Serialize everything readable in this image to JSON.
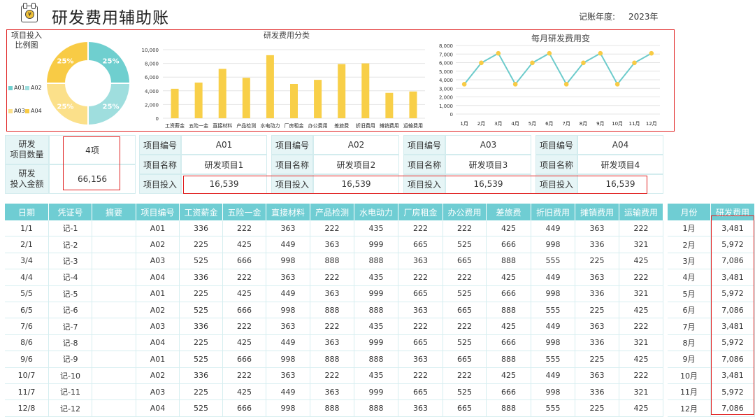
{
  "header": {
    "title": "研发费用辅助账",
    "year_label": "记账年度:",
    "year_value": "2023年",
    "logo_glyph": "¥"
  },
  "donut": {
    "title_line1": "项目投入",
    "title_line2": "比例图",
    "slices": [
      {
        "code": "A01",
        "percent": 25,
        "label": "25%",
        "color": "#6fcfcf"
      },
      {
        "code": "A02",
        "percent": 25,
        "label": "25%",
        "color": "#9fdede"
      },
      {
        "code": "A03",
        "percent": 25,
        "label": "25%",
        "color": "#fbe08a"
      },
      {
        "code": "A04",
        "percent": 25,
        "label": "25%",
        "color": "#f8cb45"
      }
    ]
  },
  "chart_data": [
    {
      "type": "bar",
      "title": "研发费用分类",
      "categories": [
        "工资薪金",
        "五险一金",
        "直接材料",
        "产品检测",
        "水电动力",
        "厂房租金",
        "办公费用",
        "差旅费",
        "折旧费用",
        "摊销费用",
        "运输费用"
      ],
      "values": [
        4300,
        5200,
        7200,
        5900,
        9200,
        5000,
        5600,
        7900,
        8000,
        3700,
        3900
      ],
      "ylim": [
        0,
        10000
      ],
      "yticks": [
        "0",
        "2,000",
        "4,000",
        "6,000",
        "8,000",
        "10,000"
      ],
      "color": "#f8cf48",
      "grid": true
    },
    {
      "type": "line",
      "title": "每月研发费用变",
      "categories": [
        "1月",
        "2月",
        "3月",
        "4月",
        "5月",
        "6月",
        "7月",
        "8月",
        "9月",
        "10月",
        "11月",
        "12月"
      ],
      "values": [
        3481,
        5972,
        7086,
        3481,
        5972,
        7086,
        3481,
        5972,
        7086,
        3481,
        5972,
        7086
      ],
      "ylim": [
        0,
        8000
      ],
      "yticks": [
        "0",
        "1,000",
        "2,000",
        "3,000",
        "4,000",
        "5,000",
        "6,000",
        "7,000",
        "8,000"
      ],
      "line_color": "#6ccbcb",
      "marker_color": "#f8cb45",
      "grid": true
    }
  ],
  "summary": {
    "count_label": "研发\n项目数量",
    "count_value": "4项",
    "amount_label": "研发\n投入金额",
    "amount_value": "66,156"
  },
  "projects": [
    {
      "no_label": "项目编号",
      "no": "A01",
      "name_label": "项目名称",
      "name": "研发项目1",
      "inv_label": "项目投入",
      "inv": "16,539"
    },
    {
      "no_label": "项目编号",
      "no": "A02",
      "name_label": "项目名称",
      "name": "研发项目2",
      "inv_label": "项目投入",
      "inv": "16,539"
    },
    {
      "no_label": "项目编号",
      "no": "A03",
      "name_label": "项目名称",
      "name": "研发项目3",
      "inv_label": "项目投入",
      "inv": "16,539"
    },
    {
      "no_label": "项目编号",
      "no": "A04",
      "name_label": "项目名称",
      "name": "研发项目4",
      "inv_label": "项目投入",
      "inv": "16,539"
    }
  ],
  "table": {
    "columns": [
      "日期",
      "凭证号",
      "摘要",
      "项目编号",
      "工资薪金",
      "五险一金",
      "直接材料",
      "产品检测",
      "水电动力",
      "厂房租金",
      "办公费用",
      "差旅费",
      "折旧费用",
      "摊销费用",
      "运输费用"
    ],
    "rows": [
      [
        "1/1",
        "记-1",
        "",
        "A01",
        "336",
        "222",
        "363",
        "222",
        "435",
        "222",
        "222",
        "425",
        "449",
        "363",
        "222"
      ],
      [
        "2/1",
        "记-2",
        "",
        "A02",
        "225",
        "425",
        "449",
        "363",
        "999",
        "665",
        "525",
        "666",
        "998",
        "336",
        "321"
      ],
      [
        "3/4",
        "记-3",
        "",
        "A03",
        "525",
        "666",
        "998",
        "888",
        "888",
        "363",
        "665",
        "888",
        "555",
        "225",
        "425"
      ],
      [
        "4/4",
        "记-4",
        "",
        "A04",
        "336",
        "222",
        "363",
        "222",
        "435",
        "222",
        "222",
        "425",
        "449",
        "363",
        "222"
      ],
      [
        "5/5",
        "记-5",
        "",
        "A01",
        "225",
        "425",
        "449",
        "363",
        "999",
        "665",
        "525",
        "666",
        "998",
        "336",
        "321"
      ],
      [
        "6/5",
        "记-6",
        "",
        "A02",
        "525",
        "666",
        "998",
        "888",
        "888",
        "363",
        "665",
        "888",
        "555",
        "225",
        "425"
      ],
      [
        "7/6",
        "记-7",
        "",
        "A03",
        "336",
        "222",
        "363",
        "222",
        "435",
        "222",
        "222",
        "425",
        "449",
        "363",
        "222"
      ],
      [
        "8/6",
        "记-8",
        "",
        "A04",
        "225",
        "425",
        "449",
        "363",
        "999",
        "665",
        "525",
        "666",
        "998",
        "336",
        "321"
      ],
      [
        "9/6",
        "记-9",
        "",
        "A01",
        "525",
        "666",
        "998",
        "888",
        "888",
        "363",
        "665",
        "888",
        "555",
        "225",
        "425"
      ],
      [
        "10/7",
        "记-10",
        "",
        "A02",
        "336",
        "222",
        "363",
        "222",
        "435",
        "222",
        "222",
        "425",
        "449",
        "363",
        "222"
      ],
      [
        "11/7",
        "记-11",
        "",
        "A03",
        "225",
        "425",
        "449",
        "363",
        "999",
        "665",
        "525",
        "666",
        "998",
        "336",
        "321"
      ],
      [
        "12/8",
        "记-12",
        "",
        "A04",
        "525",
        "666",
        "998",
        "888",
        "888",
        "363",
        "665",
        "888",
        "555",
        "225",
        "425"
      ]
    ]
  },
  "monthly": {
    "columns": [
      "月份",
      "研发费用"
    ],
    "rows": [
      [
        "1月",
        "3,481"
      ],
      [
        "2月",
        "5,972"
      ],
      [
        "3月",
        "7,086"
      ],
      [
        "4月",
        "3,481"
      ],
      [
        "5月",
        "5,972"
      ],
      [
        "6月",
        "7,086"
      ],
      [
        "7月",
        "3,481"
      ],
      [
        "8月",
        "5,972"
      ],
      [
        "9月",
        "7,086"
      ],
      [
        "10月",
        "3,481"
      ],
      [
        "11月",
        "5,972"
      ],
      [
        "12月",
        "7,086"
      ]
    ]
  }
}
